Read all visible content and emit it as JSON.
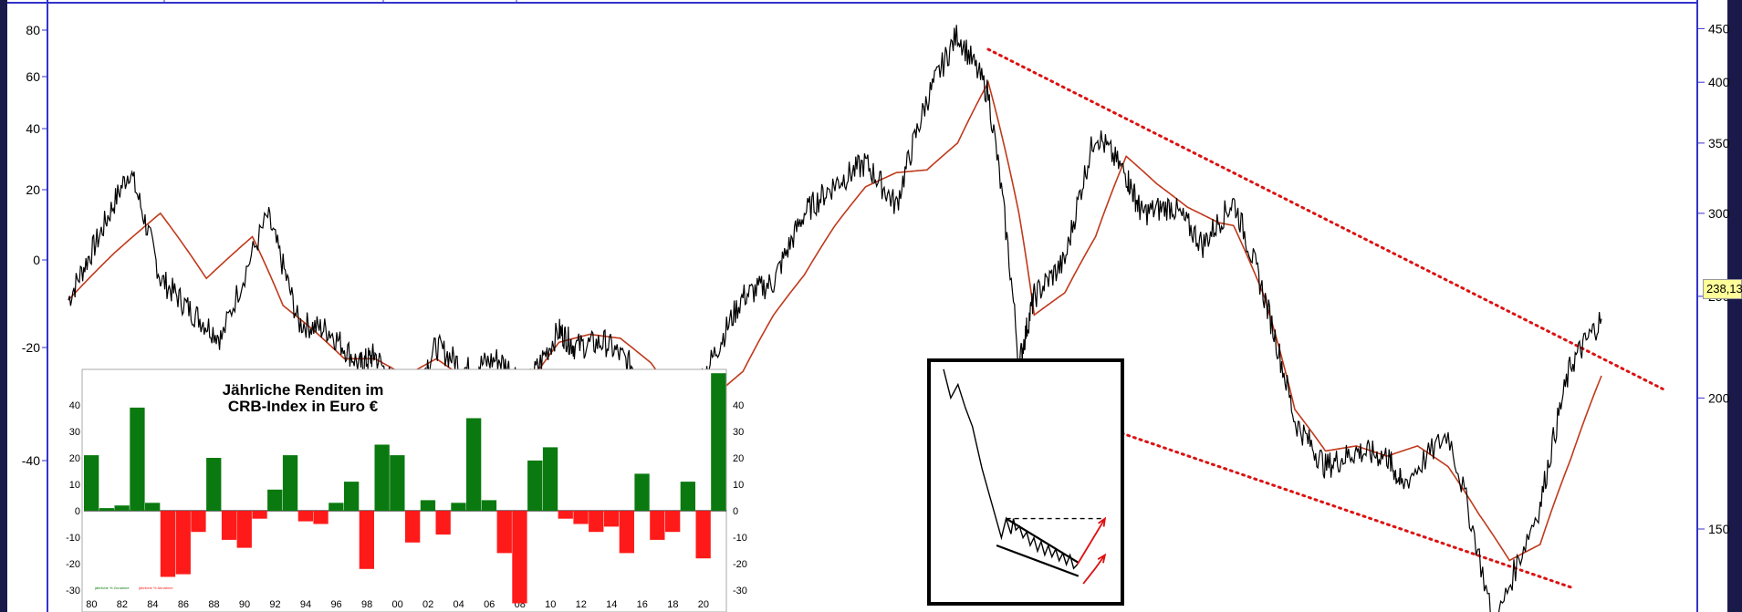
{
  "colors": {
    "frame": "#1a1a4a",
    "axis_line": "#3333cc",
    "price_line": "#000000",
    "moving_average": "#c0391b",
    "trend_lines": "#dd1111",
    "bar_positive": "#0a7a10",
    "bar_negative": "#ff1a1a",
    "price_tag_bg": "#ffff99"
  },
  "chart_data": [
    {
      "type": "line",
      "name": "main-price-chart",
      "left_axis": {
        "ticks": [
          80,
          60,
          40,
          20,
          0,
          -20,
          -40
        ],
        "scale": "symlog"
      },
      "right_axis": {
        "ticks": [
          450,
          400,
          350,
          300,
          250,
          200,
          150
        ],
        "scale": "log"
      },
      "current_price_label": "238,13",
      "price_series": {
        "x": [
          0,
          2,
          4,
          6,
          8,
          10,
          13,
          15,
          17,
          19,
          20,
          22,
          24,
          26,
          28,
          30,
          32,
          33,
          35,
          37,
          38,
          40,
          42,
          44,
          46,
          48,
          50,
          52,
          54,
          56,
          58,
          60,
          62,
          63,
          65,
          67,
          69,
          70,
          72,
          74,
          76,
          78,
          80,
          82,
          84,
          86,
          87,
          90,
          93,
          96,
          98,
          100
        ],
        "y": [
          248,
          285,
          330,
          260,
          242,
          228,
          298,
          236,
          232,
          215,
          220,
          196,
          224,
          213,
          218,
          206,
          232,
          224,
          226,
          213,
          188,
          190,
          218,
          250,
          258,
          300,
          320,
          335,
          305,
          385,
          445,
          390,
          215,
          250,
          270,
          358,
          326,
          300,
          305,
          280,
          308,
          250,
          190,
          172,
          178,
          176,
          165,
          185,
          120,
          158,
          215,
          238
        ]
      },
      "moving_average": {
        "x": [
          0,
          3,
          6,
          9,
          12,
          14,
          16,
          18,
          20,
          22,
          24,
          26,
          28,
          30,
          32,
          34,
          36,
          38,
          40,
          42,
          44,
          46,
          48,
          50,
          52,
          54,
          56,
          58,
          60,
          62,
          63,
          65,
          67,
          69,
          71,
          73,
          75,
          76,
          78,
          80,
          82,
          84,
          86,
          88,
          90,
          92,
          94,
          96,
          98,
          100
        ],
        "y": [
          248,
          275,
          300,
          260,
          285,
          245,
          232,
          218,
          218,
          210,
          218,
          208,
          210,
          206,
          226,
          230,
          228,
          216,
          196,
          200,
          212,
          240,
          262,
          292,
          318,
          328,
          330,
          350,
          400,
          300,
          240,
          252,
          285,
          340,
          320,
          304,
          294,
          292,
          250,
          195,
          178,
          180,
          176,
          180,
          172,
          155,
          140,
          145,
          175,
          210
        ]
      },
      "trend_channel": {
        "upper": {
          "x": [
            60,
            104
          ],
          "y": [
            430,
            204
          ]
        },
        "lower": {
          "x": [
            62,
            98
          ],
          "y": [
            200,
            132
          ]
        }
      }
    },
    {
      "type": "bar",
      "title": "Jährliche Renditen im\nCRB-Index in Euro €",
      "categories": [
        "1980",
        "1981",
        "1982",
        "1983",
        "1984",
        "1985",
        "1986",
        "1987",
        "1988",
        "1989",
        "1990",
        "1991",
        "1992",
        "1993",
        "1994",
        "1995",
        "1996",
        "1997",
        "1998",
        "1999",
        "2000",
        "2001",
        "2002",
        "2003",
        "2004",
        "2005",
        "2006",
        "2007",
        "2008",
        "2009",
        "2010",
        "2011",
        "2012",
        "2013",
        "2014",
        "2015",
        "2016",
        "2017",
        "2018",
        "2019",
        "2020",
        "2021"
      ],
      "values": [
        21,
        1,
        2,
        39,
        3,
        -25,
        -24,
        -8,
        20,
        -11,
        -14,
        -3,
        8,
        21,
        -4,
        -5,
        3,
        11,
        -22,
        25,
        21,
        -12,
        4,
        -9,
        3,
        35,
        4,
        -16,
        -35,
        19,
        24,
        -3,
        -5,
        -8,
        -6,
        -16,
        14,
        -11,
        -8,
        11,
        -18,
        52
      ],
      "x_tick_labels": [
        "80",
        "82",
        "84",
        "86",
        "88",
        "90",
        "92",
        "94",
        "96",
        "98",
        "00",
        "02",
        "04",
        "06",
        "08",
        "10",
        "12",
        "14",
        "16",
        "18",
        "20"
      ],
      "y_ticks": [
        40,
        30,
        20,
        10,
        0,
        -10,
        -20,
        -30
      ],
      "ylim": [
        -32,
        52
      ],
      "legend_labels": [
        "jährliche % Zunahme",
        "jährliche % Abnahme"
      ]
    },
    {
      "type": "line",
      "name": "wedge-breakout-inset",
      "price_path": {
        "x": [
          0,
          0.6,
          1.2,
          1.8,
          2.4,
          3.2,
          4.0,
          4.8,
          5.2,
          5.6,
          5.8,
          6.0,
          6.3,
          6.6,
          6.9,
          7.2,
          7.5,
          7.8,
          8.1,
          8.4,
          8.7,
          9.0,
          9.3,
          9.6,
          9.9,
          10.2,
          10.5,
          10.8,
          11.1
        ],
        "y": [
          100,
          85,
          92,
          80,
          70,
          48,
          30,
          12,
          22,
          14,
          22,
          16,
          18,
          12,
          15,
          8,
          12,
          5,
          10,
          3,
          8,
          2,
          6,
          0,
          4,
          -2,
          3,
          -4,
          -2
        ]
      },
      "wedge": {
        "upper": {
          "x": [
            5.2,
            11.2
          ],
          "y": [
            22,
            -1
          ]
        },
        "lower": {
          "x": [
            4.4,
            11.2
          ],
          "y": [
            8,
            -8
          ]
        }
      },
      "target_level": {
        "x": [
          5.2,
          13.4
        ],
        "y": [
          22,
          22
        ]
      },
      "breakout_arrows": [
        {
          "x": [
            11.1,
            13.4
          ],
          "y": [
            -2,
            22
          ]
        },
        {
          "x": [
            11.6,
            12.6,
            13.4
          ],
          "y": [
            -12,
            -4,
            3
          ]
        }
      ]
    }
  ]
}
